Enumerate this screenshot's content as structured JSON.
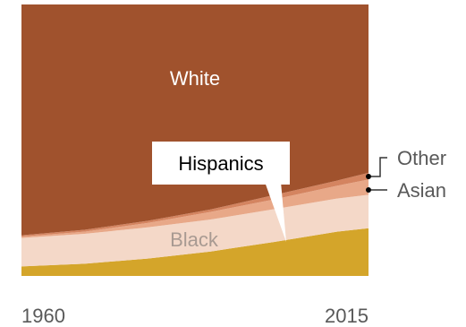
{
  "chart_data": {
    "type": "area",
    "stacked": true,
    "normalized": true,
    "x": [
      1960,
      1970,
      1980,
      1990,
      2000,
      2010,
      2015
    ],
    "xlabels": [
      "1960",
      "2015"
    ],
    "ylim": [
      0,
      100
    ],
    "series": [
      {
        "name": "Hispanics",
        "values": [
          3.5,
          4.5,
          6.4,
          9.0,
          12.5,
          16.3,
          17.6
        ],
        "color": "#d4a52a"
      },
      {
        "name": "Black",
        "values": [
          10.5,
          11.0,
          11.5,
          11.8,
          12.1,
          12.2,
          12.3
        ],
        "color": "#f4d8c8"
      },
      {
        "name": "Asian",
        "values": [
          0.5,
          0.8,
          1.6,
          2.8,
          3.6,
          4.7,
          5.6
        ],
        "color": "#e8a888"
      },
      {
        "name": "Other",
        "values": [
          0.5,
          0.7,
          0.8,
          0.9,
          1.6,
          1.9,
          2.5
        ],
        "color": "#d48460"
      },
      {
        "name": "White",
        "values": [
          85.0,
          83.0,
          79.7,
          75.5,
          70.2,
          64.9,
          62.0
        ],
        "color": "#a0522d"
      }
    ],
    "annotations": {
      "white": "White",
      "black": "Black",
      "hispanics": "Hispanics",
      "other": "Other",
      "asian": "Asian"
    }
  }
}
